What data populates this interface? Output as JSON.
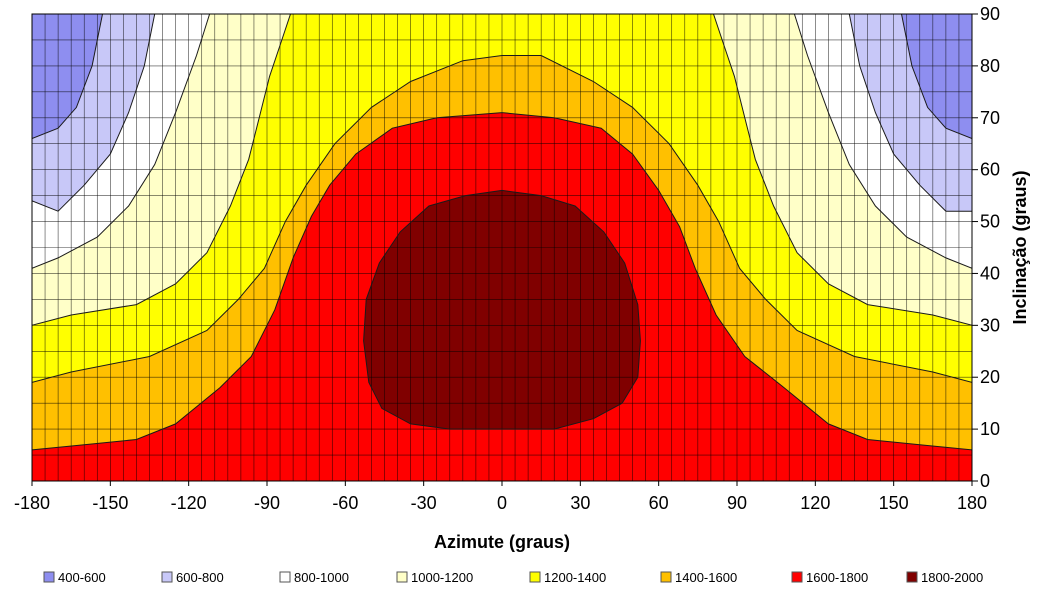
{
  "chart_data": {
    "type": "heatmap",
    "subtype": "filled-contour",
    "title": "",
    "xlabel": "Azimute (graus)",
    "ylabel": "Inclinação (graus)",
    "xlim": [
      -180,
      180
    ],
    "ylim": [
      0,
      90
    ],
    "x_ticks": [
      -180,
      -150,
      -120,
      -90,
      -60,
      -30,
      0,
      30,
      60,
      90,
      120,
      150,
      180
    ],
    "y_ticks": [
      0,
      10,
      20,
      30,
      40,
      50,
      60,
      70,
      80,
      90
    ],
    "grid": true,
    "y_axis_side": "right",
    "legend_position": "bottom",
    "levels": [
      {
        "label": "400-600",
        "min": 400,
        "max": 600,
        "color": "#8e8ef0"
      },
      {
        "label": "600-800",
        "min": 600,
        "max": 800,
        "color": "#c8c8f8"
      },
      {
        "label": "800-1000",
        "min": 800,
        "max": 1000,
        "color": "#ffffff"
      },
      {
        "label": "1000-1200",
        "min": 1000,
        "max": 1200,
        "color": "#ffffc8"
      },
      {
        "label": "1200-1400",
        "min": 1200,
        "max": 1400,
        "color": "#ffff00"
      },
      {
        "label": "1400-1600",
        "min": 1400,
        "max": 1600,
        "color": "#ffc000"
      },
      {
        "label": "1600-1800",
        "min": 1600,
        "max": 1800,
        "color": "#ff0000"
      },
      {
        "label": "1800-2000",
        "min": 1800,
        "max": 2000,
        "color": "#800000"
      }
    ],
    "contours": [
      {
        "level": 600,
        "points": [
          [
            -180,
            66
          ],
          [
            -170,
            68
          ],
          [
            -163,
            72
          ],
          [
            -157,
            80
          ],
          [
            -153,
            90
          ]
        ]
      },
      {
        "level": 600,
        "points": [
          [
            153,
            90
          ],
          [
            157,
            80
          ],
          [
            163,
            72
          ],
          [
            170,
            68
          ],
          [
            180,
            66
          ]
        ]
      },
      {
        "level": 800,
        "points": [
          [
            -180,
            54
          ],
          [
            -170,
            52
          ],
          [
            -160,
            57
          ],
          [
            -150,
            63
          ],
          [
            -143,
            71
          ],
          [
            -137,
            80
          ],
          [
            -133,
            90
          ]
        ]
      },
      {
        "level": 800,
        "points": [
          [
            133,
            90
          ],
          [
            137,
            80
          ],
          [
            143,
            71
          ],
          [
            150,
            63
          ],
          [
            160,
            57
          ],
          [
            170,
            52
          ],
          [
            180,
            52
          ]
        ]
      },
      {
        "level": 1000,
        "points": [
          [
            -180,
            41
          ],
          [
            -170,
            43
          ],
          [
            -155,
            47
          ],
          [
            -143,
            53
          ],
          [
            -133,
            61
          ],
          [
            -125,
            71
          ],
          [
            -117,
            82
          ],
          [
            -112,
            90
          ]
        ]
      },
      {
        "level": 1000,
        "points": [
          [
            112,
            90
          ],
          [
            117,
            82
          ],
          [
            125,
            71
          ],
          [
            133,
            61
          ],
          [
            143,
            53
          ],
          [
            155,
            47
          ],
          [
            170,
            43
          ],
          [
            180,
            41
          ]
        ]
      },
      {
        "level": 1200,
        "points": [
          [
            -180,
            30
          ],
          [
            -165,
            32
          ],
          [
            -140,
            34
          ],
          [
            -125,
            38
          ],
          [
            -113,
            44
          ],
          [
            -104,
            53
          ],
          [
            -97,
            62
          ],
          [
            -93,
            70
          ],
          [
            -89,
            78
          ],
          [
            -85,
            84
          ],
          [
            -81,
            90
          ]
        ]
      },
      {
        "level": 1200,
        "points": [
          [
            81,
            90
          ],
          [
            85,
            84
          ],
          [
            89,
            78
          ],
          [
            93,
            70
          ],
          [
            97,
            62
          ],
          [
            104,
            53
          ],
          [
            113,
            44
          ],
          [
            125,
            38
          ],
          [
            140,
            34
          ],
          [
            165,
            32
          ],
          [
            180,
            30
          ]
        ]
      },
      {
        "level": 1400,
        "points": [
          [
            -180,
            19
          ],
          [
            -165,
            21
          ],
          [
            -135,
            24
          ],
          [
            -113,
            29
          ],
          [
            -101,
            35
          ],
          [
            -91,
            41
          ],
          [
            -83,
            50
          ],
          [
            -75,
            57
          ],
          [
            -64,
            65
          ],
          [
            -50,
            72
          ],
          [
            -35,
            77
          ],
          [
            -15,
            81
          ],
          [
            0,
            82
          ],
          [
            15,
            82
          ],
          [
            35,
            77
          ],
          [
            50,
            72
          ],
          [
            64,
            65
          ],
          [
            75,
            57
          ],
          [
            83,
            50
          ],
          [
            91,
            41
          ],
          [
            101,
            35
          ],
          [
            113,
            29
          ],
          [
            135,
            24
          ],
          [
            165,
            21
          ],
          [
            180,
            19
          ]
        ]
      },
      {
        "level": 1600,
        "points": [
          [
            -180,
            6
          ],
          [
            -160,
            7
          ],
          [
            -140,
            8
          ],
          [
            -125,
            11
          ],
          [
            -108,
            18
          ],
          [
            -96,
            24
          ],
          [
            -87,
            33
          ],
          [
            -80,
            43
          ],
          [
            -73,
            51
          ],
          [
            -66,
            57
          ],
          [
            -56,
            63
          ],
          [
            -42,
            68
          ],
          [
            -25,
            70
          ],
          [
            0,
            71
          ],
          [
            20,
            70
          ],
          [
            38,
            68
          ],
          [
            50,
            63
          ],
          [
            60,
            56
          ],
          [
            68,
            49
          ],
          [
            74,
            41
          ],
          [
            82,
            32
          ],
          [
            93,
            24
          ],
          [
            108,
            18
          ],
          [
            125,
            11
          ],
          [
            140,
            8
          ],
          [
            160,
            7
          ],
          [
            180,
            6
          ]
        ]
      },
      {
        "level": 1800,
        "closed": true,
        "points": [
          [
            0,
            56
          ],
          [
            15,
            55
          ],
          [
            28,
            53
          ],
          [
            39,
            48
          ],
          [
            47,
            42
          ],
          [
            52,
            34
          ],
          [
            53,
            27
          ],
          [
            52,
            20
          ],
          [
            46,
            15
          ],
          [
            35,
            12
          ],
          [
            20,
            10
          ],
          [
            0,
            10
          ],
          [
            -20,
            10
          ],
          [
            -35,
            11
          ],
          [
            -46,
            14
          ],
          [
            -51,
            19
          ],
          [
            -53,
            27
          ],
          [
            -52,
            35
          ],
          [
            -47,
            42
          ],
          [
            -39,
            48
          ],
          [
            -28,
            53
          ],
          [
            -14,
            55
          ]
        ]
      }
    ]
  }
}
